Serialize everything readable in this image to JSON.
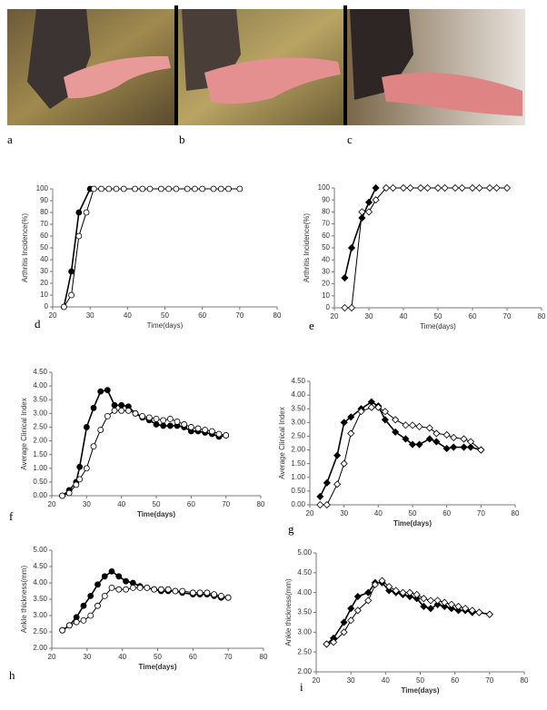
{
  "photo_labels": [
    "a",
    "b",
    "c"
  ],
  "chart_data": [
    {
      "type": "line",
      "panel": "d",
      "xlabel": "Time(days)",
      "ylabel": "Arthritis Incidence(%)",
      "xlim": [
        20,
        80
      ],
      "xticks": [
        20,
        30,
        40,
        50,
        60,
        70,
        80
      ],
      "ylim": [
        0,
        100
      ],
      "yticks": [
        0,
        10,
        20,
        30,
        40,
        50,
        60,
        70,
        80,
        90,
        100
      ],
      "series": [
        {
          "marker": "filled",
          "shape": "circle",
          "color": "#000000",
          "x": [
            23,
            25,
            27,
            30
          ],
          "values": [
            0,
            30,
            80,
            100
          ]
        },
        {
          "marker": "open",
          "shape": "circle",
          "color": "#000000",
          "x": [
            23,
            25,
            27,
            29,
            31,
            33,
            35,
            37,
            39,
            42,
            44,
            46,
            49,
            51,
            53,
            56,
            58,
            60,
            63,
            65,
            67,
            70
          ],
          "values": [
            0,
            10,
            60,
            80,
            100,
            100,
            100,
            100,
            100,
            100,
            100,
            100,
            100,
            100,
            100,
            100,
            100,
            100,
            100,
            100,
            100,
            100
          ]
        }
      ]
    },
    {
      "type": "line",
      "panel": "e",
      "xlabel": "Time(days)",
      "ylabel": "Arthritis Incidence(%)",
      "xlim": [
        20,
        80
      ],
      "xticks": [
        20,
        30,
        40,
        50,
        60,
        70,
        80
      ],
      "ylim": [
        0,
        100
      ],
      "yticks": [
        0,
        10,
        20,
        30,
        40,
        50,
        60,
        70,
        80,
        90,
        100
      ],
      "series": [
        {
          "marker": "filled",
          "shape": "diamond",
          "color": "#000000",
          "x": [
            23,
            25,
            28,
            30,
            32
          ],
          "values": [
            25,
            50,
            75,
            88,
            100
          ]
        },
        {
          "marker": "open",
          "shape": "diamond",
          "color": "#000000",
          "x": [
            23,
            25,
            28,
            30,
            32,
            35,
            37,
            40,
            42,
            45,
            47,
            50,
            52,
            55,
            57,
            60,
            62,
            65,
            67,
            70
          ],
          "values": [
            0,
            0,
            80,
            80,
            90,
            100,
            100,
            100,
            100,
            100,
            100,
            100,
            100,
            100,
            100,
            100,
            100,
            100,
            100,
            100
          ]
        }
      ]
    },
    {
      "type": "line",
      "panel": "f",
      "xlabel": "Time(days)",
      "ylabel": "Average Clinical Index",
      "xlim": [
        20,
        80
      ],
      "xticks": [
        20,
        30,
        40,
        50,
        60,
        70,
        80
      ],
      "ylim": [
        0,
        4.5
      ],
      "yticks": [
        {
          "value": 0,
          "label": "0.00"
        },
        {
          "value": 0.5,
          "label": "0.50"
        },
        {
          "value": 1,
          "label": "1.00"
        },
        {
          "value": 1.5,
          "label": "1.50"
        },
        {
          "value": 2,
          "label": "2.00"
        },
        {
          "value": 2.5,
          "label": "2.50"
        },
        {
          "value": 3,
          "label": "3.00"
        },
        {
          "value": 3.5,
          "label": "3.50"
        },
        {
          "value": 4,
          "label": "4.00"
        },
        {
          "value": 4.5,
          "label": "4.50"
        }
      ],
      "series": [
        {
          "marker": "filled",
          "shape": "circle",
          "color": "#000000",
          "x": [
            23,
            25,
            27,
            28,
            30,
            32,
            34,
            36,
            38,
            40,
            42,
            44,
            46,
            48,
            50,
            52,
            54,
            56,
            58,
            60,
            62,
            64,
            66,
            68,
            70
          ],
          "values": [
            0,
            0.2,
            0.5,
            1.05,
            2.5,
            3.2,
            3.8,
            3.85,
            3.3,
            3.3,
            3.25,
            3.0,
            2.85,
            2.75,
            2.6,
            2.55,
            2.55,
            2.55,
            2.5,
            2.35,
            2.35,
            2.3,
            2.25,
            2.15,
            2.2
          ]
        },
        {
          "marker": "open",
          "shape": "circle",
          "color": "#000000",
          "x": [
            23,
            25,
            27,
            28,
            30,
            32,
            34,
            36,
            38,
            40,
            42,
            44,
            46,
            48,
            50,
            52,
            54,
            56,
            58,
            60,
            62,
            64,
            66,
            68,
            70
          ],
          "values": [
            0,
            0.1,
            0.4,
            0.6,
            1.0,
            1.8,
            2.4,
            2.9,
            3.1,
            3.1,
            3.1,
            3.0,
            2.9,
            2.85,
            2.8,
            2.75,
            2.8,
            2.7,
            2.6,
            2.5,
            2.45,
            2.4,
            2.35,
            2.25,
            2.2
          ]
        }
      ]
    },
    {
      "type": "line",
      "panel": "g",
      "xlabel": "Time(days)",
      "ylabel": "Average Clinical Index",
      "xlim": [
        20,
        80
      ],
      "xticks": [
        20,
        30,
        40,
        50,
        60,
        70,
        80
      ],
      "ylim": [
        0,
        4.5
      ],
      "yticks": [
        {
          "value": 0,
          "label": "0.00"
        },
        {
          "value": 0.5,
          "label": "0.50"
        },
        {
          "value": 1,
          "label": "1.00"
        },
        {
          "value": 1.5,
          "label": "1.50"
        },
        {
          "value": 2,
          "label": "2.00"
        },
        {
          "value": 2.5,
          "label": "2.50"
        },
        {
          "value": 3,
          "label": "3.00"
        },
        {
          "value": 3.5,
          "label": "3.50"
        },
        {
          "value": 4,
          "label": "4.00"
        },
        {
          "value": 4.5,
          "label": "4.50"
        }
      ],
      "series": [
        {
          "marker": "filled",
          "shape": "diamond",
          "color": "#000000",
          "x": [
            23,
            25,
            28,
            30,
            32,
            35,
            38,
            40,
            42,
            45,
            48,
            50,
            52,
            55,
            57,
            60,
            62,
            65,
            67,
            70
          ],
          "values": [
            0.3,
            0.8,
            1.8,
            3.0,
            3.2,
            3.5,
            3.75,
            3.6,
            3.1,
            2.65,
            2.4,
            2.2,
            2.2,
            2.4,
            2.3,
            2.05,
            2.1,
            2.1,
            2.1,
            2.0
          ]
        },
        {
          "marker": "open",
          "shape": "diamond",
          "color": "#000000",
          "x": [
            23,
            25,
            28,
            30,
            32,
            35,
            38,
            40,
            42,
            45,
            48,
            50,
            52,
            55,
            57,
            60,
            62,
            65,
            67,
            70
          ],
          "values": [
            0,
            0,
            0.75,
            1.5,
            2.6,
            3.4,
            3.55,
            3.55,
            3.4,
            3.1,
            2.9,
            2.9,
            2.85,
            2.8,
            2.6,
            2.55,
            2.45,
            2.4,
            2.3,
            2.0
          ]
        }
      ]
    },
    {
      "type": "line",
      "panel": "h",
      "xlabel": "Time(days)",
      "ylabel": "Ankle thickness(mm)",
      "xlim": [
        20,
        80
      ],
      "xticks": [
        20,
        30,
        40,
        50,
        60,
        70,
        80
      ],
      "ylim": [
        2,
        5
      ],
      "yticks": [
        {
          "value": 2,
          "label": "2.00"
        },
        {
          "value": 2.5,
          "label": "2.50"
        },
        {
          "value": 3,
          "label": "3.00"
        },
        {
          "value": 3.5,
          "label": "3.50"
        },
        {
          "value": 4,
          "label": "4.00"
        },
        {
          "value": 4.5,
          "label": "4.50"
        },
        {
          "value": 5,
          "label": "5.00"
        }
      ],
      "series": [
        {
          "marker": "filled",
          "shape": "circle",
          "color": "#000000",
          "x": [
            23,
            25,
            27,
            29,
            31,
            33,
            35,
            37,
            39,
            41,
            43,
            45,
            47,
            49,
            51,
            53,
            55,
            57,
            60,
            62,
            64,
            66,
            68,
            70
          ],
          "values": [
            2.55,
            2.7,
            2.95,
            3.3,
            3.6,
            3.95,
            4.2,
            4.35,
            4.2,
            4.05,
            4.0,
            3.9,
            3.85,
            3.8,
            3.75,
            3.75,
            3.75,
            3.7,
            3.65,
            3.65,
            3.65,
            3.6,
            3.55,
            3.55
          ]
        },
        {
          "marker": "open",
          "shape": "circle",
          "color": "#000000",
          "x": [
            23,
            25,
            27,
            29,
            31,
            33,
            35,
            37,
            39,
            41,
            43,
            45,
            47,
            49,
            51,
            53,
            55,
            57,
            60,
            62,
            64,
            66,
            68,
            70
          ],
          "values": [
            2.55,
            2.7,
            2.8,
            2.85,
            3.0,
            3.3,
            3.6,
            3.85,
            3.8,
            3.8,
            3.85,
            3.85,
            3.85,
            3.8,
            3.8,
            3.8,
            3.75,
            3.75,
            3.7,
            3.7,
            3.7,
            3.65,
            3.6,
            3.55
          ]
        }
      ]
    },
    {
      "type": "line",
      "panel": "i",
      "xlabel": "Time(days)",
      "ylabel": "Ankle thickness(mm)",
      "xlim": [
        20,
        80
      ],
      "xticks": [
        20,
        30,
        40,
        50,
        60,
        70,
        80
      ],
      "ylim": [
        2,
        5
      ],
      "yticks": [
        {
          "value": 2,
          "label": "2.00"
        },
        {
          "value": 2.5,
          "label": "2.50"
        },
        {
          "value": 3,
          "label": "3.00"
        },
        {
          "value": 3.5,
          "label": "3.50"
        },
        {
          "value": 4,
          "label": "4.00"
        },
        {
          "value": 4.5,
          "label": "4.50"
        },
        {
          "value": 5,
          "label": "5.00"
        }
      ],
      "series": [
        {
          "marker": "filled",
          "shape": "diamond",
          "color": "#000000",
          "x": [
            23,
            25,
            28,
            30,
            32,
            35,
            37,
            39,
            41,
            43,
            45,
            47,
            49,
            51,
            53,
            55,
            57,
            59,
            61,
            63,
            65,
            67,
            70
          ],
          "values": [
            2.7,
            2.85,
            3.25,
            3.6,
            3.9,
            4.0,
            4.25,
            4.25,
            4.05,
            4.0,
            3.95,
            3.9,
            3.85,
            3.65,
            3.6,
            3.7,
            3.65,
            3.6,
            3.55,
            3.55,
            3.5,
            3.5,
            3.45
          ]
        },
        {
          "marker": "open",
          "shape": "diamond",
          "color": "#000000",
          "x": [
            23,
            25,
            28,
            30,
            32,
            35,
            37,
            39,
            41,
            43,
            45,
            47,
            49,
            51,
            53,
            55,
            57,
            59,
            61,
            63,
            65,
            67,
            70
          ],
          "values": [
            2.7,
            2.75,
            3.0,
            3.3,
            3.55,
            3.8,
            4.2,
            4.3,
            4.15,
            4.05,
            4.0,
            4.0,
            3.95,
            3.85,
            3.8,
            3.8,
            3.75,
            3.7,
            3.65,
            3.6,
            3.55,
            3.5,
            3.45
          ]
        }
      ]
    }
  ]
}
